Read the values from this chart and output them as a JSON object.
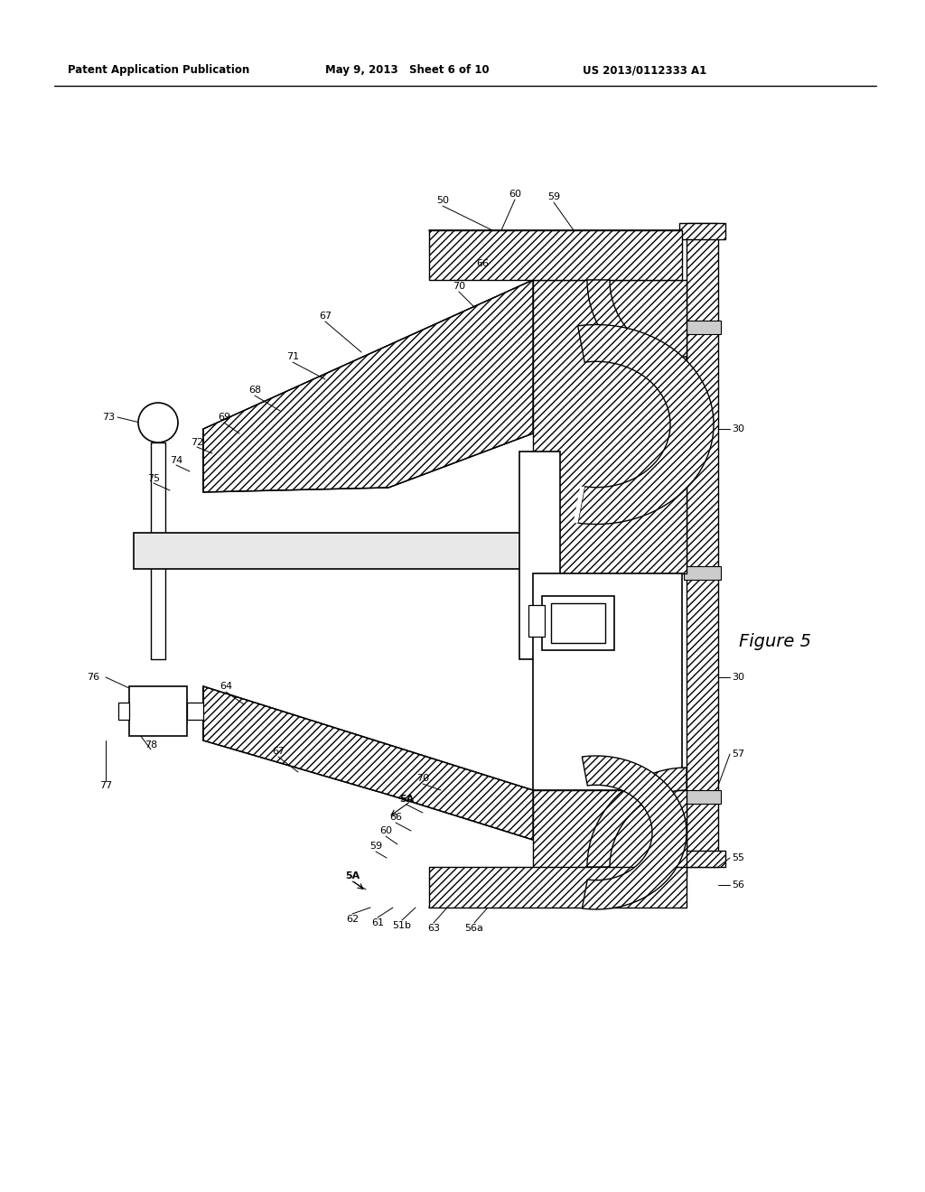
{
  "header_left": "Patent Application Publication",
  "header_mid": "May 9, 2013   Sheet 6 of 10",
  "header_right": "US 2013/0112333 A1",
  "figure_label": "Figure 5",
  "bg_color": "#ffffff",
  "line_color": "#000000",
  "fig_width": 10.24,
  "fig_height": 13.2
}
